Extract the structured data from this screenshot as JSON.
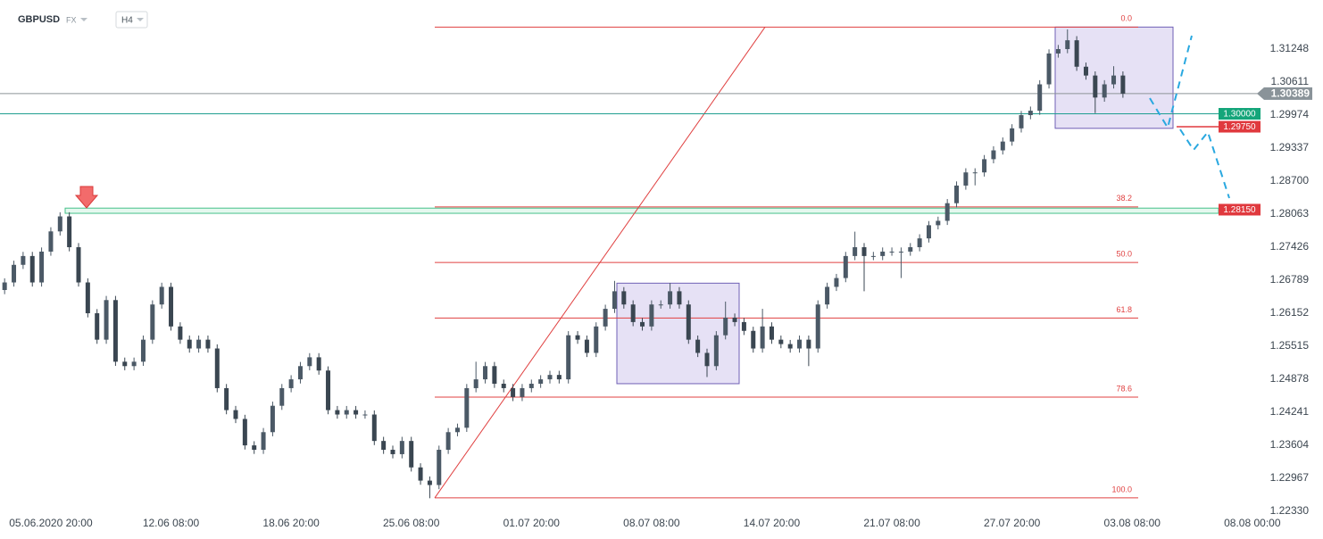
{
  "chart_data": {
    "type": "candlestick",
    "title": "GBPUSD",
    "market": "FX",
    "timeframe": "H4",
    "categories": [
      null,
      null,
      null,
      null,
      null,
      "05.06.2020 20:00",
      null,
      null,
      null,
      null,
      null,
      null,
      null,
      null,
      null,
      null,
      null,
      null,
      "12.06 08:00",
      null,
      null,
      null,
      null,
      null,
      null,
      null,
      null,
      null,
      null,
      null,
      null,
      "18.06 20:00",
      null,
      null,
      null,
      null,
      null,
      null,
      null,
      null,
      null,
      null,
      null,
      null,
      "25.06 08:00",
      null,
      null,
      null,
      null,
      null,
      null,
      null,
      null,
      null,
      null,
      null,
      null,
      "01.07 20:00",
      null,
      null,
      null,
      null,
      null,
      null,
      null,
      null,
      null,
      null,
      null,
      null,
      "08.07 08:00",
      null,
      null,
      null,
      null,
      null,
      null,
      null,
      null,
      null,
      null,
      null,
      null,
      "14.07 20:00",
      null,
      null,
      null,
      null,
      null,
      null,
      null,
      null,
      null,
      null,
      null,
      null,
      "21.07 08:00",
      null,
      null,
      null,
      null,
      null,
      null,
      null,
      null,
      null,
      null,
      null,
      null,
      "27.07 20:00",
      null,
      null,
      null,
      null,
      null,
      null,
      null,
      null,
      null,
      null,
      null,
      null,
      "03.08 08:00",
      null,
      null,
      null,
      null,
      null,
      null,
      null,
      null,
      null,
      null,
      null,
      null,
      "08.08 00:00"
    ],
    "open": [
      1.266,
      1.26746,
      1.27086,
      1.27256,
      1.26746,
      1.27341,
      1.27731,
      1.2802,
      1.27426,
      1.26746,
      1.26152,
      1.25642,
      1.26406,
      1.25217,
      1.25132,
      1.25217,
      1.25642,
      1.26321,
      1.26661,
      1.25897,
      1.25642,
      1.25472,
      1.25642,
      1.25472,
      1.24707,
      1.24283,
      1.24113,
      1.23603,
      1.23518,
      1.23858,
      1.24367,
      1.24707,
      1.24877,
      1.25132,
      1.25302,
      1.25047,
      1.24283,
      1.24198,
      1.24283,
      1.24198,
      1.24198,
      1.23688,
      1.23518,
      1.23433,
      1.23688,
      1.23178,
      1.22923,
      1.22838,
      1.23518,
      1.23858,
      1.23943,
      1.24707,
      1.24877,
      1.25132,
      1.24792,
      1.24707,
      1.24537,
      1.24707,
      1.24792,
      1.24877,
      1.24962,
      1.24877,
      1.25727,
      1.25642,
      1.25387,
      1.25897,
      1.26237,
      1.26576,
      1.26321,
      1.25982,
      1.25897,
      1.26321,
      1.26321,
      1.26576,
      1.26321,
      1.25642,
      1.25387,
      1.25132,
      1.25727,
      1.26067,
      1.25982,
      1.25812,
      1.25472,
      1.25897,
      1.25642,
      1.25557,
      1.25472,
      1.25642,
      1.25472,
      1.26321,
      1.26661,
      1.26831,
      1.27256,
      1.27426,
      1.27256,
      1.27256,
      1.27341,
      1.27341,
      1.27341,
      1.27426,
      1.27596,
      1.2785,
      1.27935,
      1.28275,
      1.28615,
      1.28869,
      1.28869,
      1.29124,
      1.29294,
      1.29464,
      1.29719,
      1.29974,
      1.30059,
      1.30568,
      1.31163,
      1.31248,
      1.31418,
      1.30908,
      1.30738,
      1.30313,
      1.30568,
      1.30738,
      null,
      null,
      null,
      null,
      null,
      null,
      null,
      null,
      null,
      null,
      null,
      null,
      null,
      null
    ],
    "high": [
      1.26826,
      1.27166,
      1.27336,
      1.27336,
      1.27421,
      1.27811,
      1.281,
      1.281,
      1.27506,
      1.26826,
      1.26232,
      1.26486,
      1.26486,
      1.25297,
      1.25297,
      1.25722,
      1.26401,
      1.26741,
      1.26741,
      1.25977,
      1.25722,
      1.25722,
      1.25722,
      1.25552,
      1.24787,
      1.24363,
      1.24193,
      1.23683,
      1.23938,
      1.24447,
      1.24787,
      1.24957,
      1.25212,
      1.25382,
      1.25382,
      1.25127,
      1.24363,
      1.24363,
      1.24363,
      1.24278,
      1.24278,
      1.23768,
      1.23598,
      1.23768,
      1.23768,
      1.23258,
      1.23003,
      1.23598,
      1.23938,
      1.24023,
      1.24787,
      1.25217,
      1.25212,
      1.25212,
      1.24872,
      1.24787,
      1.24787,
      1.24872,
      1.24957,
      1.25042,
      1.25042,
      1.25807,
      1.25807,
      1.25722,
      1.25977,
      1.26317,
      1.26776,
      1.26656,
      1.26401,
      1.26062,
      1.26401,
      1.26401,
      1.26736,
      1.26656,
      1.26401,
      1.25722,
      1.25467,
      1.25807,
      1.26377,
      1.26147,
      1.26062,
      1.25892,
      1.26237,
      1.25977,
      1.25722,
      1.25637,
      1.25722,
      1.25722,
      1.26401,
      1.26741,
      1.26911,
      1.27336,
      1.27726,
      1.27506,
      1.27336,
      1.27421,
      1.27421,
      1.27421,
      1.27506,
      1.27676,
      1.2793,
      1.28015,
      1.28355,
      1.28695,
      1.28949,
      1.28949,
      1.29204,
      1.29374,
      1.29544,
      1.29799,
      1.30054,
      1.30139,
      1.30648,
      1.31243,
      1.31328,
      1.31628,
      1.31498,
      1.30988,
      1.30818,
      1.30648,
      1.30918,
      1.30818,
      null,
      null,
      null,
      null,
      null,
      null,
      null,
      null,
      null,
      null,
      null,
      null,
      null,
      null
    ],
    "low": [
      1.2652,
      1.26666,
      1.27006,
      1.26666,
      1.26666,
      1.27261,
      1.27651,
      1.27346,
      1.26666,
      1.26072,
      1.25562,
      1.25562,
      1.25137,
      1.25052,
      1.25052,
      1.25137,
      1.25562,
      1.26241,
      1.25817,
      1.25562,
      1.25392,
      1.25392,
      1.25392,
      1.24627,
      1.24203,
      1.24033,
      1.23523,
      1.23438,
      1.23438,
      1.23778,
      1.24287,
      1.24627,
      1.24797,
      1.25052,
      1.24967,
      1.24203,
      1.24118,
      1.24118,
      1.24118,
      1.24118,
      1.23608,
      1.23438,
      1.23353,
      1.23353,
      1.23098,
      1.22843,
      1.22583,
      1.22758,
      1.23438,
      1.23778,
      1.23863,
      1.24627,
      1.24797,
      1.24712,
      1.24627,
      1.24457,
      1.24457,
      1.24627,
      1.24712,
      1.24797,
      1.24797,
      1.24797,
      1.25562,
      1.25307,
      1.25307,
      1.25817,
      1.26157,
      1.26241,
      1.25902,
      1.25817,
      1.25817,
      1.26241,
      1.26241,
      1.26241,
      1.25562,
      1.25307,
      1.24922,
      1.25052,
      1.25647,
      1.25902,
      1.25732,
      1.25392,
      1.25392,
      1.25562,
      1.25477,
      1.25392,
      1.25392,
      1.25132,
      1.25392,
      1.26241,
      1.26581,
      1.26751,
      1.27176,
      1.26576,
      1.27176,
      1.27176,
      1.27261,
      1.26831,
      1.27261,
      1.27346,
      1.27516,
      1.2777,
      1.27855,
      1.28195,
      1.28535,
      1.28619,
      1.28789,
      1.29044,
      1.29214,
      1.29384,
      1.29639,
      1.29894,
      1.29979,
      1.30488,
      1.31083,
      1.31168,
      1.30828,
      1.30658,
      1.30013,
      1.30233,
      1.30488,
      1.30309,
      null,
      null,
      null,
      null,
      null,
      null,
      null,
      null,
      null,
      null,
      null,
      null,
      null,
      null
    ],
    "close": [
      1.26746,
      1.27086,
      1.27256,
      1.26746,
      1.27341,
      1.27731,
      1.2802,
      1.27426,
      1.26746,
      1.26152,
      1.25642,
      1.26406,
      1.25217,
      1.25132,
      1.25217,
      1.25642,
      1.26321,
      1.26661,
      1.25897,
      1.25642,
      1.25472,
      1.25642,
      1.25472,
      1.24707,
      1.24283,
      1.24113,
      1.23603,
      1.23518,
      1.23858,
      1.24367,
      1.24707,
      1.24877,
      1.25132,
      1.25302,
      1.25047,
      1.24283,
      1.24198,
      1.24283,
      1.24198,
      1.24198,
      1.23688,
      1.23518,
      1.23433,
      1.23688,
      1.23178,
      1.22923,
      1.22838,
      1.23518,
      1.23858,
      1.23943,
      1.24707,
      1.24877,
      1.25132,
      1.24792,
      1.24707,
      1.24537,
      1.24707,
      1.24792,
      1.24877,
      1.24962,
      1.24877,
      1.25727,
      1.25642,
      1.25387,
      1.25897,
      1.26237,
      1.26576,
      1.26321,
      1.25982,
      1.25897,
      1.26321,
      1.26321,
      1.26576,
      1.26321,
      1.25642,
      1.25387,
      1.25132,
      1.25727,
      1.26067,
      1.25982,
      1.25812,
      1.25472,
      1.25897,
      1.25642,
      1.25557,
      1.25472,
      1.25642,
      1.25472,
      1.26321,
      1.26661,
      1.26831,
      1.27256,
      1.27426,
      1.27256,
      1.27256,
      1.27341,
      1.27341,
      1.27341,
      1.27426,
      1.27596,
      1.2785,
      1.27935,
      1.28275,
      1.28615,
      1.28869,
      1.28869,
      1.29124,
      1.29294,
      1.29464,
      1.29719,
      1.29974,
      1.30059,
      1.30568,
      1.31163,
      1.31248,
      1.31418,
      1.30908,
      1.30738,
      1.30313,
      1.30568,
      1.30738,
      1.30389,
      null,
      null,
      null,
      null,
      null,
      null,
      null,
      null,
      null,
      null,
      null,
      null,
      null,
      null
    ],
    "up_color": "#4b5966",
    "down_color": "#3a4651",
    "ylim": [
      1.22296,
      1.32195
    ],
    "yticks": [
      1.31248,
      1.30611,
      1.29974,
      1.29337,
      {
        "value": 1.287,
        "label": "1.28700"
      },
      1.28063,
      1.27426,
      1.26789,
      1.26152,
      1.25515,
      1.24878,
      1.24241,
      1.23604,
      1.22967,
      {
        "value": 1.2233,
        "label": "1.22330"
      }
    ],
    "grid": false,
    "last_price": 1.30389,
    "levels": [
      {
        "value": 1.3,
        "label": "1.30000",
        "color": "#14a57a"
      },
      {
        "value": 1.2975,
        "label": "1.29750",
        "color": "#e0393e"
      },
      {
        "value": 1.2815,
        "label": "1.28150",
        "color": "#e0393e"
      }
    ],
    "support_zone": {
      "top": 1.2818,
      "bottom": 1.2808
    },
    "boxes": [
      {
        "top": 1.26732,
        "bottom": 1.24793
      },
      {
        "top": 1.31673,
        "bottom": 1.29719
      }
    ],
    "fibonacci": {
      "high": 1.31673,
      "low": 1.2259,
      "color": "#e04040",
      "levels": [
        {
          "value": 0,
          "label": "0.0"
        },
        38.2,
        {
          "value": 50,
          "label": "50.0"
        },
        61.8,
        78.6,
        {
          "value": 100,
          "label": "100.0"
        }
      ]
    }
  }
}
